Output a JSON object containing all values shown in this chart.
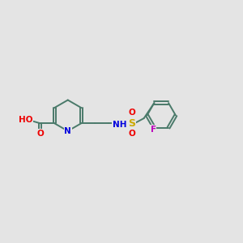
{
  "bg_color": "#e4e4e4",
  "bond_color": "#4a7a6a",
  "atom_colors": {
    "N": "#0000dd",
    "O": "#ee0000",
    "S": "#ccaa00",
    "F": "#bb00bb",
    "H": "#888888",
    "C": "#4a7a6a"
  },
  "figsize": [
    3.0,
    3.0
  ],
  "dpi": 100
}
